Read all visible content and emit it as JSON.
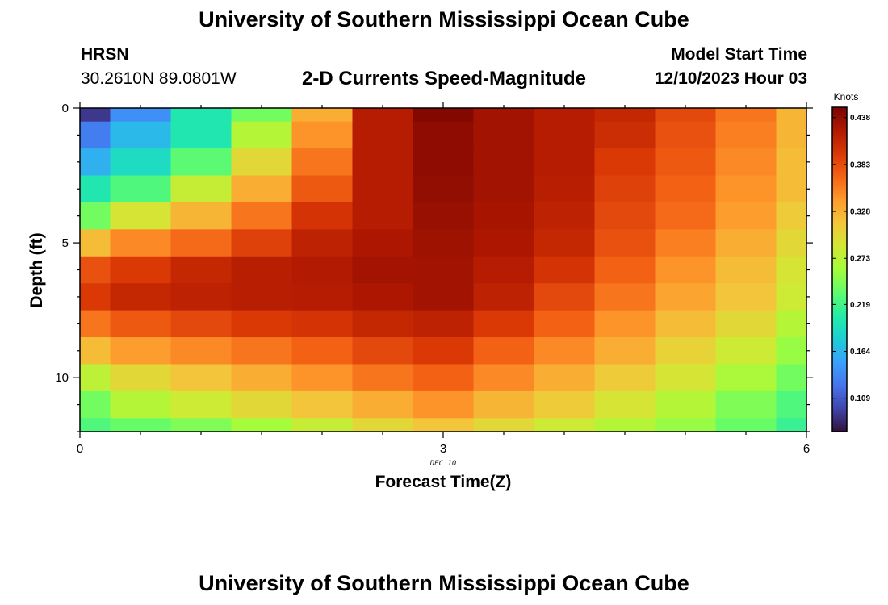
{
  "header": {
    "title": "University of Southern Mississippi Ocean Cube",
    "station": "HRSN",
    "coords": "30.2610N  89.0801W",
    "plot_title": "2-D Currents Speed-Magnitude",
    "model_label": "Model Start Time",
    "model_time": "12/10/2023 Hour 03"
  },
  "footer": {
    "title": "University of Southern Mississippi Ocean Cube"
  },
  "chart_data": {
    "type": "heatmap",
    "title": "2-D Currents Speed-Magnitude",
    "xlabel": "Forecast Time(Z)",
    "ylabel": "Depth (ft)",
    "x_sublabel": "DEC 10",
    "xlim": [
      0,
      6
    ],
    "ylim": [
      0,
      12
    ],
    "x_ticks": [
      0,
      3,
      6
    ],
    "y_ticks": [
      0,
      5,
      10
    ],
    "colorbar": {
      "unit": "Knots",
      "range": [
        0.07,
        0.45
      ],
      "ticks": [
        "0.438",
        "0.383",
        "0.328",
        "0.273",
        "0.219",
        "0.164",
        "0.109"
      ],
      "colors": [
        "#30123b",
        "#4145ab",
        "#4675ed",
        "#39a2fc",
        "#1bcfd4",
        "#24eca6",
        "#61fc6c",
        "#a4fc3b",
        "#d1e834",
        "#f3c63a",
        "#fe9b2d",
        "#f36315",
        "#d93806",
        "#b11901",
        "#7a0402"
      ]
    },
    "columns_x": [
      0.0,
      0.25,
      0.75,
      1.25,
      1.75,
      2.25,
      2.75,
      3.25,
      3.75,
      4.25,
      4.75,
      5.25,
      5.75,
      6.0
    ],
    "rows_depth": [
      0.0,
      0.5,
      1.5,
      2.5,
      3.5,
      4.5,
      5.5,
      6.5,
      7.5,
      8.5,
      9.5,
      10.5,
      11.5,
      12.0
    ],
    "values": [
      [
        0.09,
        0.14,
        0.2,
        0.24,
        0.33,
        0.42,
        0.445,
        0.43,
        0.42,
        0.41,
        0.385,
        0.36,
        0.325
      ],
      [
        0.13,
        0.165,
        0.2,
        0.27,
        0.345,
        0.42,
        0.44,
        0.43,
        0.42,
        0.405,
        0.38,
        0.355,
        0.325
      ],
      [
        0.16,
        0.19,
        0.23,
        0.3,
        0.36,
        0.42,
        0.44,
        0.43,
        0.42,
        0.395,
        0.375,
        0.35,
        0.32
      ],
      [
        0.2,
        0.225,
        0.28,
        0.33,
        0.375,
        0.42,
        0.438,
        0.43,
        0.418,
        0.39,
        0.37,
        0.345,
        0.32
      ],
      [
        0.24,
        0.29,
        0.325,
        0.36,
        0.4,
        0.42,
        0.435,
        0.428,
        0.415,
        0.385,
        0.365,
        0.34,
        0.31
      ],
      [
        0.32,
        0.35,
        0.365,
        0.39,
        0.415,
        0.425,
        0.432,
        0.425,
        0.41,
        0.38,
        0.355,
        0.33,
        0.3
      ],
      [
        0.38,
        0.395,
        0.41,
        0.418,
        0.422,
        0.43,
        0.43,
        0.42,
        0.4,
        0.37,
        0.345,
        0.32,
        0.29
      ],
      [
        0.395,
        0.41,
        0.415,
        0.418,
        0.42,
        0.425,
        0.43,
        0.415,
        0.385,
        0.36,
        0.335,
        0.315,
        0.285
      ],
      [
        0.36,
        0.375,
        0.385,
        0.395,
        0.4,
        0.41,
        0.415,
        0.395,
        0.37,
        0.345,
        0.32,
        0.3,
        0.27
      ],
      [
        0.32,
        0.34,
        0.35,
        0.36,
        0.37,
        0.385,
        0.395,
        0.37,
        0.35,
        0.33,
        0.305,
        0.285,
        0.255
      ],
      [
        0.275,
        0.3,
        0.315,
        0.33,
        0.345,
        0.36,
        0.37,
        0.35,
        0.33,
        0.31,
        0.29,
        0.265,
        0.24
      ],
      [
        0.24,
        0.27,
        0.285,
        0.3,
        0.315,
        0.33,
        0.345,
        0.325,
        0.31,
        0.29,
        0.27,
        0.245,
        0.225
      ],
      [
        0.225,
        0.235,
        0.245,
        0.26,
        0.28,
        0.3,
        0.315,
        0.3,
        0.285,
        0.27,
        0.255,
        0.235,
        0.215
      ]
    ]
  }
}
